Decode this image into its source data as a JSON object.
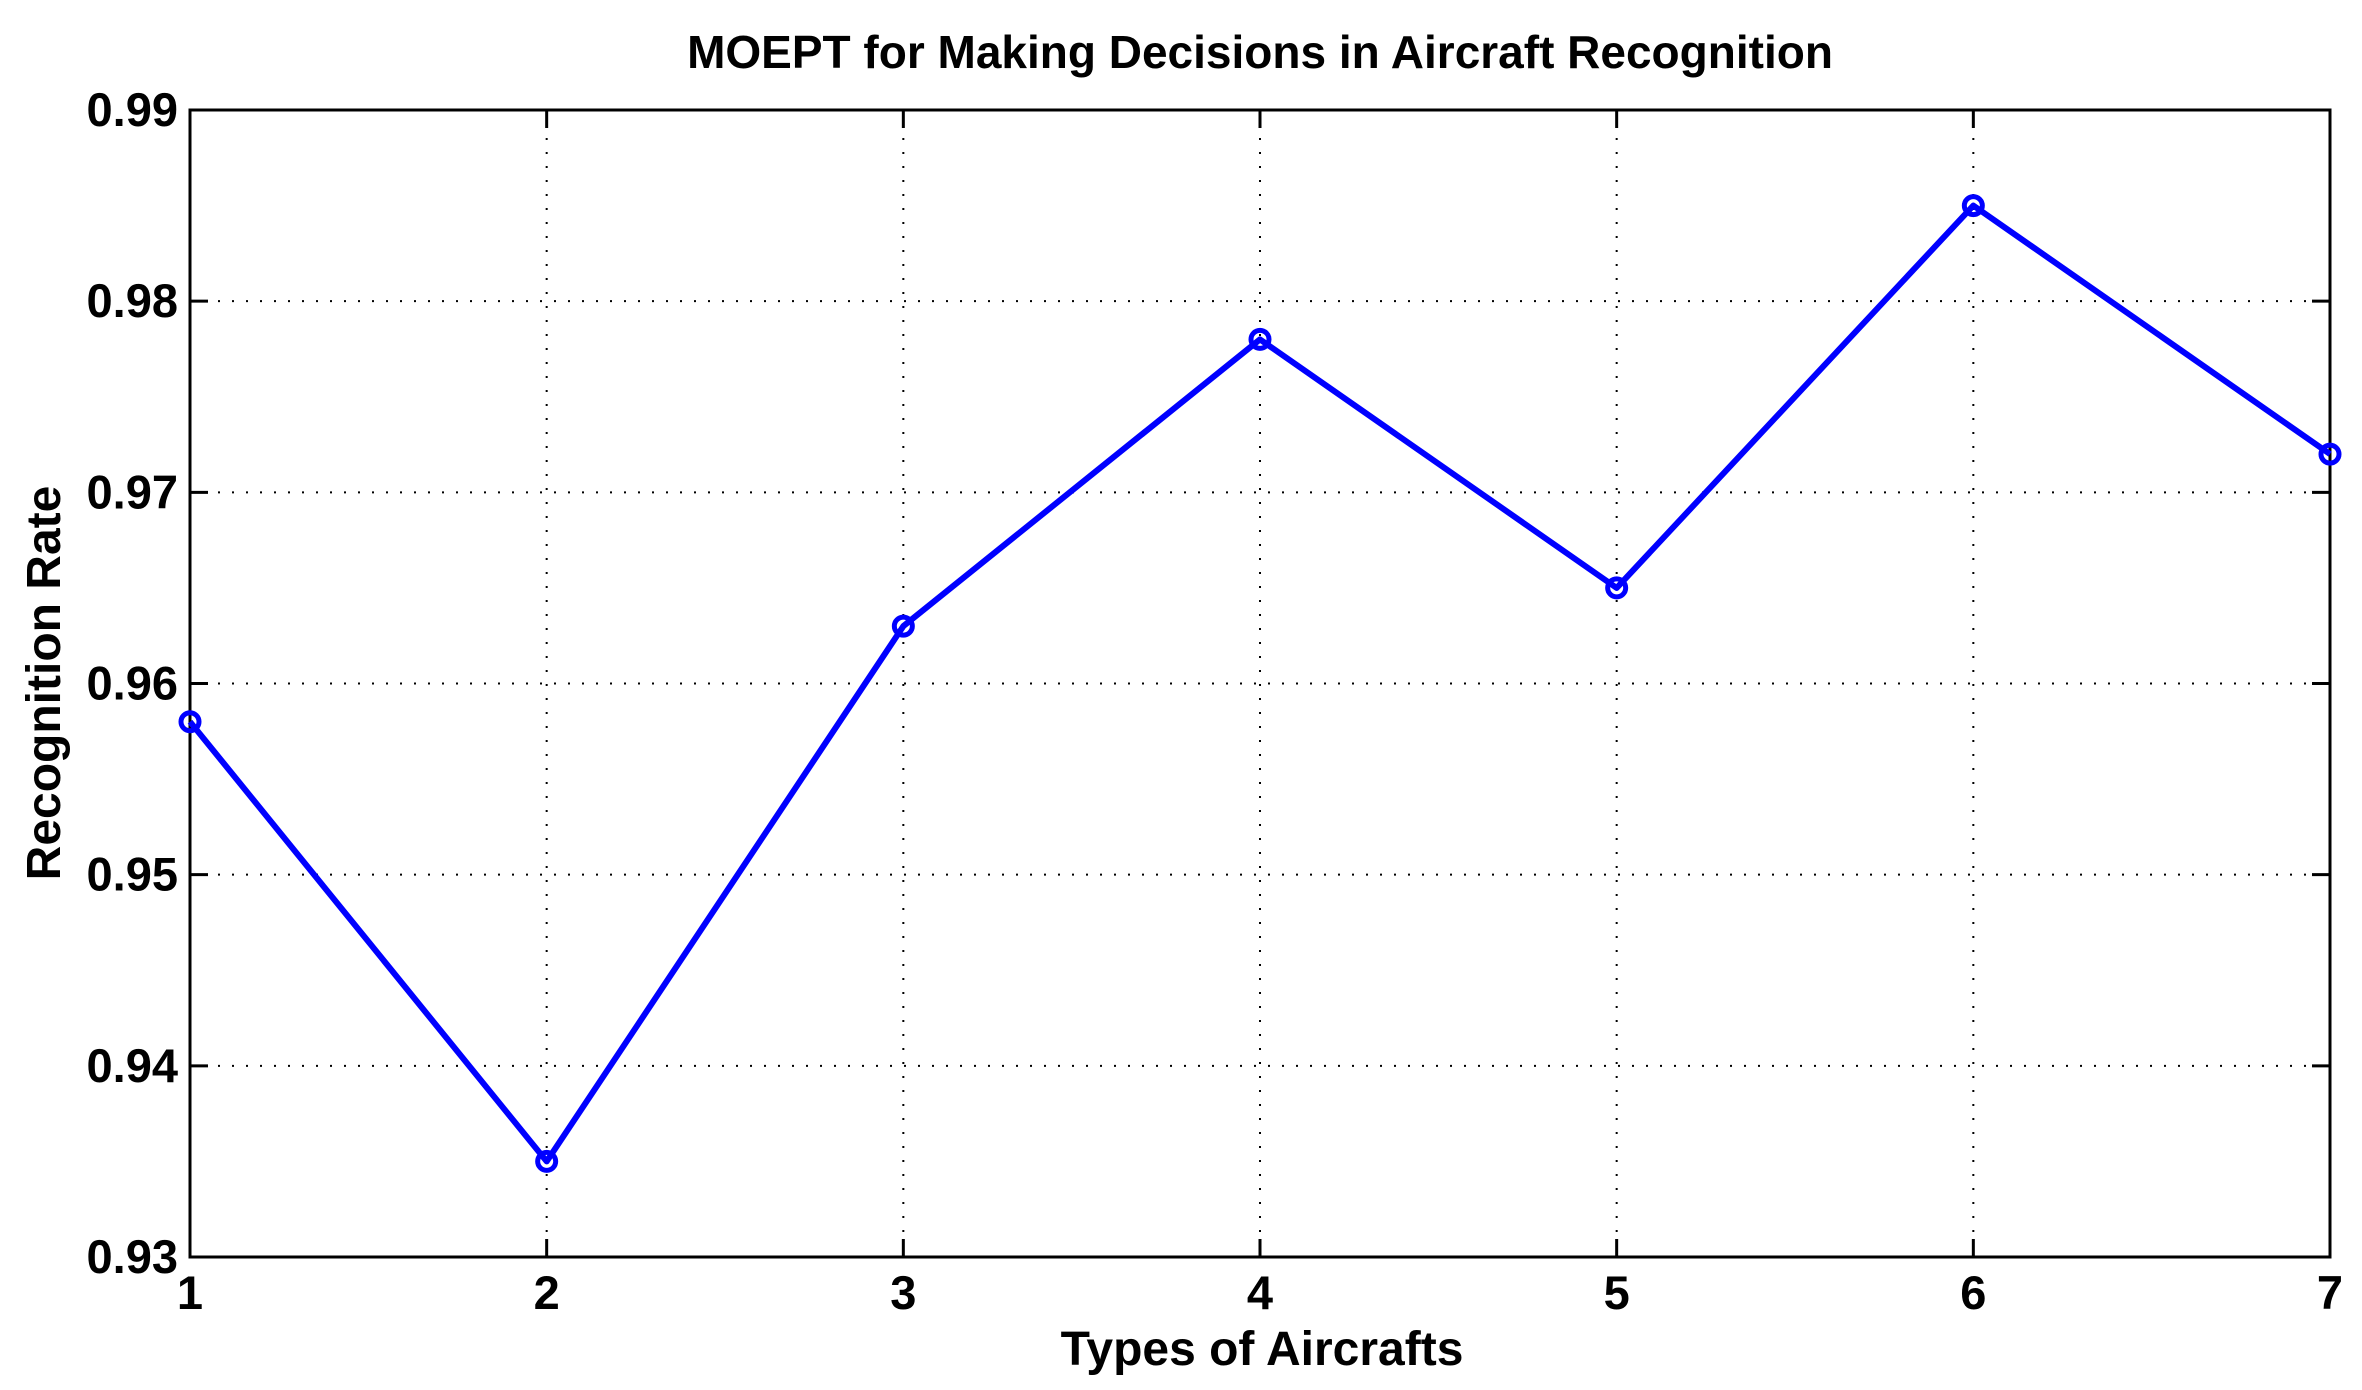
{
  "chart_data": {
    "type": "line",
    "title": "MOEPT for Making Decisions in Aircraft Recognition",
    "xlabel": "Types of Aircrafts",
    "ylabel": "Recognition Rate",
    "x": [
      1,
      2,
      3,
      4,
      5,
      6,
      7
    ],
    "xlim": [
      1,
      7
    ],
    "ylim": [
      0.93,
      0.99
    ],
    "xticks": [
      "1",
      "2",
      "3",
      "4",
      "5",
      "6",
      "7"
    ],
    "yticks": [
      "0.93",
      "0.94",
      "0.95",
      "0.96",
      "0.97",
      "0.98",
      "0.99"
    ],
    "ytick_values": [
      0.93,
      0.94,
      0.95,
      0.96,
      0.97,
      0.98,
      0.99
    ],
    "grid": true,
    "series": [
      {
        "name": "Recognition Rate",
        "color": "#0000ff",
        "marker": "circle",
        "values": [
          0.958,
          0.935,
          0.963,
          0.978,
          0.965,
          0.985,
          0.972
        ]
      }
    ]
  }
}
